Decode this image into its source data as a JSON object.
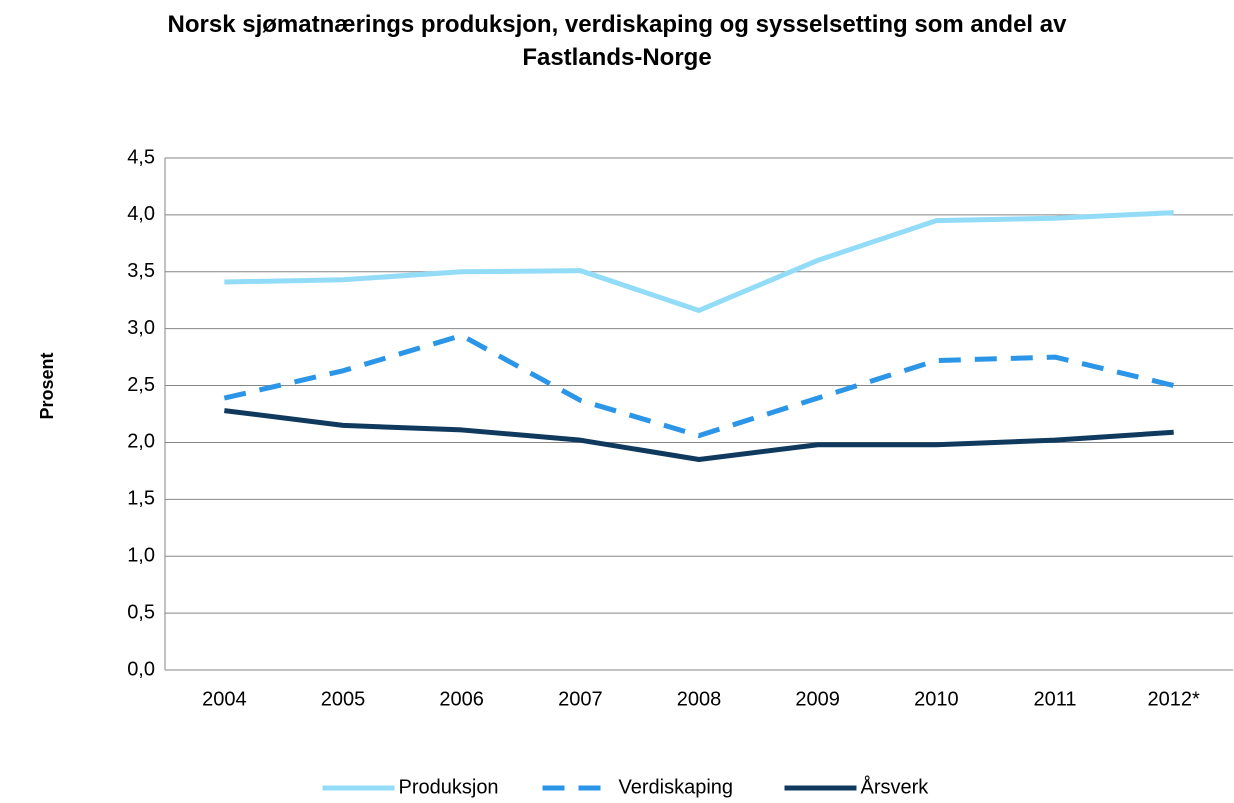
{
  "chart_data": {
    "type": "line",
    "title": "Norsk sjømatnærings produksjon, verdiskaping og sysselsetting som andel av Fastlands-Norge",
    "y_label": "Prosent",
    "categories": [
      "2004",
      "2005",
      "2006",
      "2007",
      "2008",
      "2009",
      "2010",
      "2011",
      "2012*"
    ],
    "series": [
      {
        "name": "Produksjon",
        "color": "#93dcf8",
        "style": "solid",
        "values": [
          3.41,
          3.43,
          3.5,
          3.51,
          3.16,
          3.6,
          3.95,
          3.97,
          4.02
        ]
      },
      {
        "name": "Verdiskaping",
        "color": "#2b95e8",
        "style": "dashed",
        "values": [
          2.39,
          2.63,
          2.94,
          2.37,
          2.06,
          2.39,
          2.72,
          2.75,
          2.5
        ]
      },
      {
        "name": "Årsverk",
        "color": "#0f3a5e",
        "style": "solid",
        "values": [
          2.28,
          2.15,
          2.11,
          2.02,
          1.85,
          1.98,
          1.98,
          2.02,
          2.09
        ]
      }
    ],
    "ylim": [
      0,
      4.5
    ],
    "yticks": [
      {
        "value": 0,
        "label": "0,0"
      },
      {
        "value": 0.5,
        "label": "0,5"
      },
      {
        "value": 1,
        "label": "1,0"
      },
      {
        "value": 1.5,
        "label": "1,5"
      },
      {
        "value": 2,
        "label": "2,0"
      },
      {
        "value": 2.5,
        "label": "2,5"
      },
      {
        "value": 3,
        "label": "3,0"
      },
      {
        "value": 3.5,
        "label": "3,5"
      },
      {
        "value": 4,
        "label": "4,0"
      },
      {
        "value": 4.5,
        "label": "4,5"
      }
    ],
    "grid": true,
    "legend": "bottom"
  }
}
